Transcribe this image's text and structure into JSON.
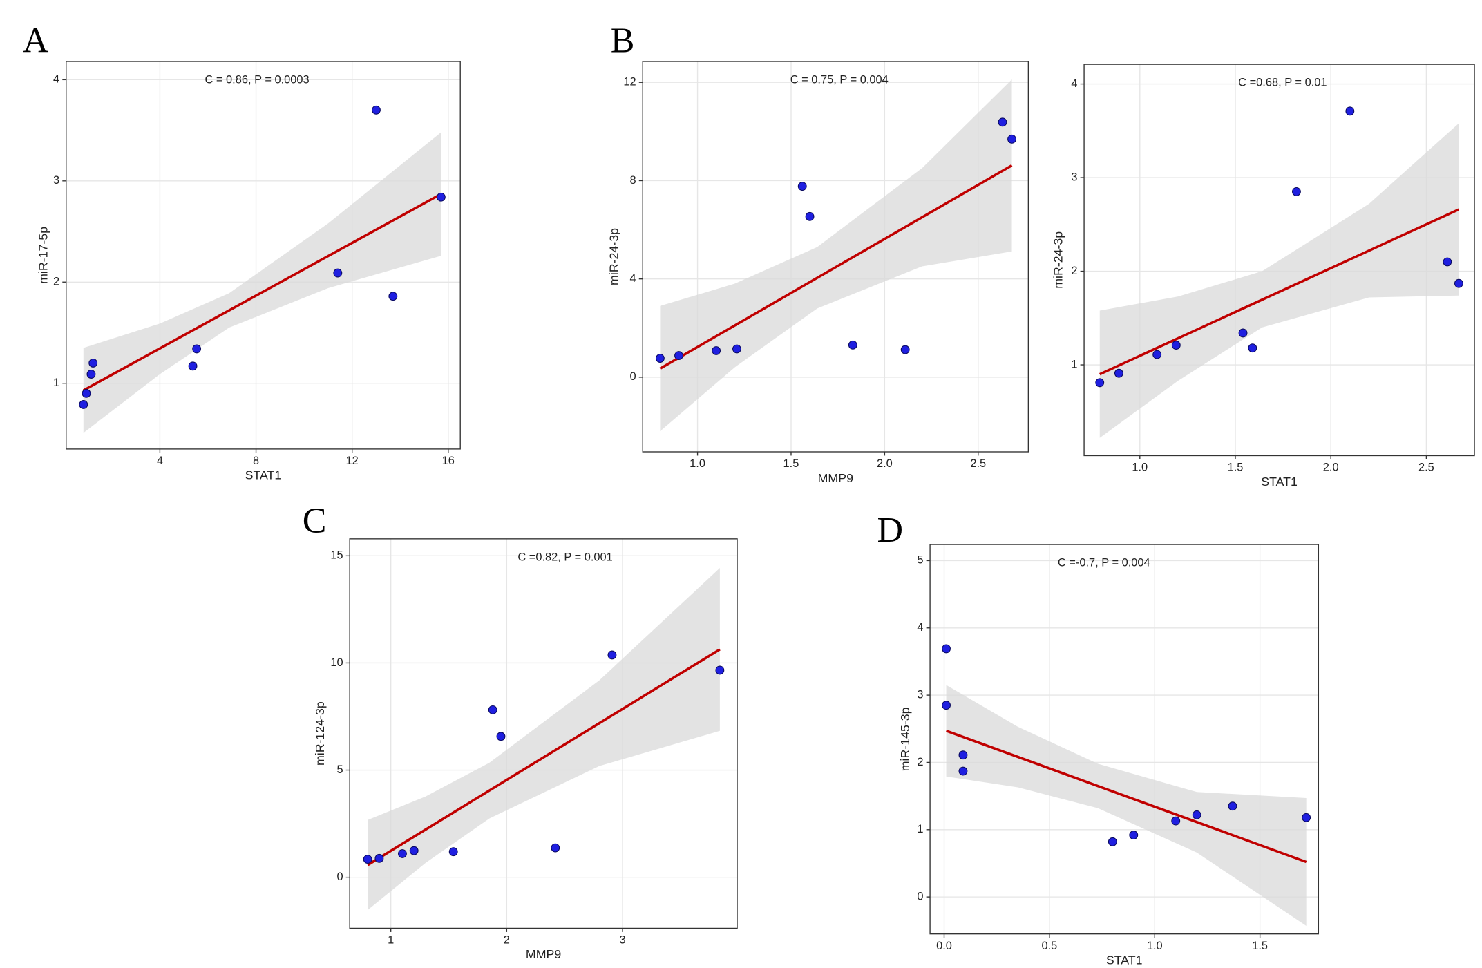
{
  "chart_data": [
    {
      "type": "scatter",
      "panel_label": "A",
      "annotation": "C = 0.86, P = 0.0003",
      "x_label": "STAT1",
      "y_label": "miR-17-5p",
      "x": [
        0.82,
        0.94,
        1.14,
        1.22,
        5.37,
        5.53,
        11.4,
        13.0,
        13.7,
        15.7
      ],
      "y": [
        0.79,
        0.9,
        1.09,
        1.2,
        1.17,
        1.34,
        2.09,
        3.7,
        1.86,
        2.84
      ],
      "fit": {
        "x": [
          0.82,
          15.7
        ],
        "y": [
          0.93,
          2.87
        ]
      },
      "band": {
        "x": [
          0.82,
          4,
          6.88,
          11,
          15.7
        ],
        "upper": [
          1.35,
          1.59,
          1.89,
          2.58,
          3.48
        ],
        "lower": [
          0.51,
          1.09,
          1.55,
          1.94,
          2.26
        ]
      },
      "xlim": [
        0.1,
        16.5
      ],
      "ylim": [
        0.35,
        4.18
      ],
      "xticks": [
        4,
        8,
        12,
        16
      ],
      "yticks": [
        1,
        2,
        3,
        4
      ],
      "point_color": "#1f1fe0",
      "line_color": "#c00000",
      "band_color": "#d9d9d9",
      "grid": true
    },
    {
      "type": "scatter",
      "panel_label": "B",
      "annotation": "C = 0.75, P = 0.004",
      "x_label": "MMP9",
      "y_label": "miR-24-3p",
      "x": [
        0.8,
        0.9,
        1.1,
        1.21,
        1.56,
        1.6,
        1.83,
        2.11,
        2.63,
        2.68
      ],
      "y": [
        0.77,
        0.88,
        1.08,
        1.15,
        7.77,
        6.54,
        1.31,
        1.12,
        10.38,
        9.69
      ],
      "fit": {
        "x": [
          0.8,
          2.68
        ],
        "y": [
          0.35,
          8.62
        ]
      },
      "band": {
        "x": [
          0.8,
          1.2,
          1.64,
          2.2,
          2.68
        ],
        "upper": [
          2.9,
          3.81,
          5.3,
          8.51,
          12.12
        ],
        "lower": [
          -2.2,
          0.41,
          2.8,
          4.51,
          5.12
        ]
      },
      "xlim": [
        0.707,
        2.768
      ],
      "ylim": [
        -3.04,
        12.85
      ],
      "xticks": [
        {
          "value": 1,
          "label": "1.0"
        },
        {
          "value": 1.5,
          "label": "1.5"
        },
        {
          "value": 2,
          "label": "2.0"
        },
        {
          "value": 2.5,
          "label": "2.5"
        }
      ],
      "yticks": [
        0,
        4,
        8,
        12
      ],
      "point_color": "#1f1fe0",
      "line_color": "#c00000",
      "band_color": "#d9d9d9",
      "grid": true
    },
    {
      "type": "scatter",
      "annotation": "C =0.68, P = 0.01",
      "x_label": "STAT1",
      "y_label": "miR-24-3p",
      "x": [
        0.79,
        0.89,
        1.09,
        1.19,
        1.54,
        1.59,
        1.82,
        2.1,
        2.61,
        2.67
      ],
      "y": [
        0.81,
        0.91,
        1.11,
        1.21,
        1.34,
        1.18,
        2.85,
        3.71,
        2.1,
        1.87
      ],
      "fit": {
        "x": [
          0.79,
          2.67
        ],
        "y": [
          0.9,
          2.66
        ]
      },
      "band": {
        "x": [
          0.79,
          1.2,
          1.64,
          2.2,
          2.67
        ],
        "upper": [
          1.58,
          1.73,
          2.0,
          2.72,
          3.58
        ],
        "lower": [
          0.22,
          0.83,
          1.4,
          1.72,
          1.74
        ]
      },
      "xlim": [
        0.708,
        2.752
      ],
      "ylim": [
        0.03,
        4.21
      ],
      "xticks": [
        {
          "value": 1,
          "label": "1.0"
        },
        {
          "value": 1.5,
          "label": "1.5"
        },
        {
          "value": 2,
          "label": "2.0"
        },
        {
          "value": 2.5,
          "label": "2.5"
        }
      ],
      "yticks": [
        1,
        2,
        3,
        4
      ],
      "point_color": "#1f1fe0",
      "line_color": "#c00000",
      "band_color": "#d9d9d9",
      "grid": true
    },
    {
      "type": "scatter",
      "panel_label": "C",
      "annotation": "C =0.82, P = 0.001",
      "x_label": "MMP9",
      "y_label": "miR-124-3p",
      "x": [
        0.8,
        0.9,
        1.1,
        1.2,
        1.54,
        1.88,
        1.95,
        2.42,
        2.91,
        3.84
      ],
      "y": [
        0.84,
        0.88,
        1.1,
        1.24,
        1.19,
        7.81,
        6.57,
        1.37,
        10.37,
        9.66
      ],
      "fit": {
        "x": [
          0.8,
          3.84
        ],
        "y": [
          0.57,
          10.63
        ]
      },
      "band": {
        "x": [
          0.8,
          1.3,
          1.85,
          2.8,
          3.84
        ],
        "upper": [
          2.67,
          3.77,
          5.34,
          9.19,
          14.43
        ],
        "lower": [
          -1.53,
          0.67,
          2.74,
          5.19,
          6.83
        ]
      },
      "xlim": [
        0.645,
        3.99
      ],
      "ylim": [
        -2.38,
        15.79
      ],
      "xticks": [
        1,
        2,
        3
      ],
      "yticks": [
        0,
        5,
        10,
        15
      ],
      "point_color": "#1f1fe0",
      "line_color": "#c00000",
      "band_color": "#d9d9d9",
      "grid": true
    },
    {
      "type": "scatter",
      "panel_label": "D",
      "annotation": "C =-0.7, P = 0.004",
      "x_label": "STAT1",
      "y_label": "miR-145-3p",
      "x": [
        0.01,
        0.01,
        0.09,
        0.09,
        0.8,
        0.9,
        1.1,
        1.2,
        1.37,
        1.72
      ],
      "y": [
        3.69,
        2.85,
        2.11,
        1.87,
        0.82,
        0.92,
        1.13,
        1.22,
        1.35,
        1.18
      ],
      "fit": {
        "x": [
          0.01,
          1.72
        ],
        "y": [
          2.47,
          0.52
        ]
      },
      "band": {
        "x": [
          0.01,
          0.35,
          0.73,
          1.2,
          1.72
        ],
        "upper": [
          3.15,
          2.53,
          1.98,
          1.56,
          1.47
        ],
        "lower": [
          1.79,
          1.63,
          1.32,
          0.66,
          -0.43
        ]
      },
      "xlim": [
        -0.067,
        1.778
      ],
      "ylim": [
        -0.55,
        5.24
      ],
      "xticks": [
        {
          "value": 0,
          "label": "0.0"
        },
        {
          "value": 0.5,
          "label": "0.5"
        },
        {
          "value": 1,
          "label": "1.0"
        },
        {
          "value": 1.5,
          "label": "1.5"
        }
      ],
      "yticks": [
        0,
        1,
        2,
        3,
        4,
        5
      ],
      "point_color": "#1f1fe0",
      "line_color": "#c00000",
      "band_color": "#d9d9d9",
      "grid": true
    }
  ]
}
